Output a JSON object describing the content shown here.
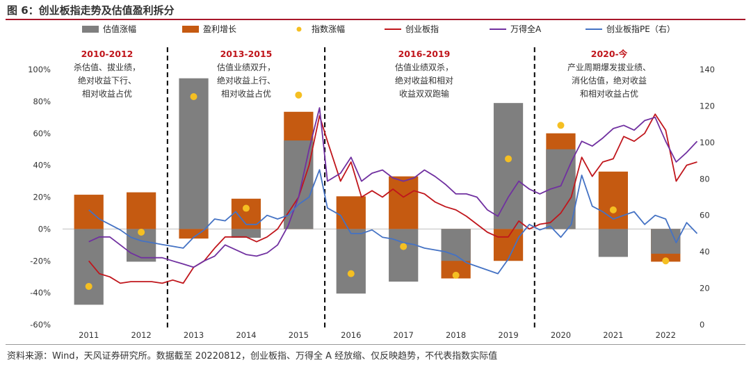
{
  "title": "图 6：创业板指走势及估值盈利拆分",
  "source": "资料来源：Wind，天风证券研究所。数据截至 20220812，创业板指、万得全 A 经放缩、仅反映趋势，不代表指数实际值",
  "colors": {
    "valuation": "#7f7f7f",
    "earnings": "#c55a11",
    "index_return": "#f5bf22",
    "chinext": "#c0161c",
    "wind_a": "#7030a0",
    "pe": "#4472c4",
    "annotation": "#c0161c"
  },
  "legend": [
    {
      "key": "valuation",
      "label": "估值涨幅",
      "mark": "bar"
    },
    {
      "key": "earnings",
      "label": "盈利增长",
      "mark": "bar"
    },
    {
      "key": "index_return",
      "label": "指数涨幅",
      "mark": "dot"
    },
    {
      "key": "chinext",
      "label": "创业板指",
      "mark": "line"
    },
    {
      "key": "wind_a",
      "label": "万得全A",
      "mark": "line"
    },
    {
      "key": "pe",
      "label": "创业板指PE（右）",
      "mark": "line"
    }
  ],
  "annotations": [
    {
      "heading": "2010-2012",
      "lines": [
        "杀估值、拔业绩，",
        "绝对收益下行、",
        "相对收益占优"
      ]
    },
    {
      "heading": "2013-2015",
      "lines": [
        "估值业绩双升，",
        "绝对收益上行、",
        "相对收益占优"
      ]
    },
    {
      "heading": "2016-2019",
      "lines": [
        "估值业绩双杀，",
        "绝对收益和相对",
        "收益双双跑输"
      ]
    },
    {
      "heading": "2020-今",
      "lines": [
        "产业周期爆发拔业绩、",
        "消化估值，绝对收益",
        "和相对收益占优"
      ]
    }
  ],
  "chart_data": {
    "type": "bar",
    "categories": [
      "2011",
      "2012",
      "2013",
      "2014",
      "2015",
      "2016",
      "2017",
      "2018",
      "2019",
      "2020",
      "2021",
      "2022"
    ],
    "y_left": {
      "min": -60,
      "max": 100,
      "unit": "%",
      "ticks": [
        "-60%",
        "-40%",
        "-20%",
        "0%",
        "20%",
        "40%",
        "60%",
        "80%",
        "100%"
      ]
    },
    "y_right": {
      "min": 0,
      "max": 140,
      "ticks": [
        "0",
        "20",
        "40",
        "60",
        "80",
        "100",
        "120",
        "140"
      ]
    },
    "phase_dividers_after": [
      "2012",
      "2015",
      "2019"
    ],
    "bar_series": [
      {
        "name": "估值涨幅",
        "values": [
          -47.5,
          -20.5,
          94.5,
          -5.5,
          55.5,
          -40.5,
          -33,
          -20,
          79,
          50,
          -17.5,
          -15.5
        ]
      },
      {
        "name": "盈利增长",
        "values": [
          21.5,
          23,
          -6,
          19,
          73.5,
          20.5,
          33,
          -31,
          -20,
          60,
          36,
          -20.5
        ]
      }
    ],
    "dot_series": {
      "name": "指数涨幅",
      "values": [
        -36,
        -2,
        83,
        13,
        84,
        -28,
        -11,
        -29,
        44,
        65,
        12,
        -20
      ]
    },
    "line_series": [
      {
        "name": "创业板指",
        "axis": "left",
        "x": [
          2011.0,
          2011.2,
          2011.4,
          2011.6,
          2011.8,
          2012.0,
          2012.2,
          2012.4,
          2012.6,
          2012.8,
          2013.0,
          2013.2,
          2013.4,
          2013.6,
          2013.8,
          2014.0,
          2014.2,
          2014.4,
          2014.6,
          2014.8,
          2015.0,
          2015.2,
          2015.4,
          2015.55,
          2015.8,
          2016.0,
          2016.2,
          2016.4,
          2016.6,
          2016.8,
          2017.0,
          2017.2,
          2017.4,
          2017.6,
          2017.8,
          2018.0,
          2018.2,
          2018.4,
          2018.6,
          2018.8,
          2019.0,
          2019.2,
          2019.4,
          2019.6,
          2019.8,
          2020.0,
          2020.2,
          2020.4,
          2020.6,
          2020.8,
          2021.0,
          2021.2,
          2021.4,
          2021.6,
          2021.8,
          2022.0,
          2022.2,
          2022.4,
          2022.6
        ],
        "y": [
          -20,
          -28,
          -30,
          -34,
          -33,
          -33,
          -33,
          -34,
          -32,
          -34,
          -24,
          -20,
          -12,
          -5,
          -5,
          -5,
          -8,
          -5,
          0,
          10,
          20,
          40,
          71,
          55,
          30,
          42,
          20,
          24,
          20,
          25,
          20,
          24,
          22,
          17,
          14,
          12,
          8,
          3,
          -2,
          -5,
          -5,
          5,
          0,
          3,
          4,
          10,
          20,
          45,
          33,
          42,
          44,
          58,
          55,
          60,
          72,
          62,
          30,
          40,
          42
        ]
      },
      {
        "name": "万得全A",
        "axis": "left",
        "x": [
          2011.0,
          2011.2,
          2011.4,
          2011.6,
          2011.8,
          2012.0,
          2012.2,
          2012.4,
          2012.6,
          2012.8,
          2013.0,
          2013.2,
          2013.4,
          2013.6,
          2013.8,
          2014.0,
          2014.2,
          2014.4,
          2014.6,
          2014.8,
          2015.0,
          2015.2,
          2015.4,
          2015.55,
          2015.8,
          2016.0,
          2016.2,
          2016.4,
          2016.6,
          2016.8,
          2017.0,
          2017.2,
          2017.4,
          2017.6,
          2017.8,
          2018.0,
          2018.2,
          2018.4,
          2018.6,
          2018.8,
          2019.0,
          2019.2,
          2019.4,
          2019.6,
          2019.8,
          2020.0,
          2020.2,
          2020.4,
          2020.6,
          2020.8,
          2021.0,
          2021.2,
          2021.4,
          2021.6,
          2021.8,
          2022.0,
          2022.2,
          2022.4,
          2022.6
        ],
        "y": [
          -8,
          -5,
          -5,
          -10,
          -15,
          -18,
          -18,
          -18,
          -20,
          -22,
          -24,
          -20,
          -17,
          -10,
          -13,
          -16,
          -17,
          -15,
          -10,
          2,
          20,
          50,
          76,
          30,
          35,
          45,
          30,
          35,
          37,
          32,
          30,
          32,
          37,
          33,
          28,
          22,
          22,
          20,
          12,
          8,
          20,
          30,
          25,
          22,
          25,
          27,
          42,
          55,
          52,
          57,
          63,
          65,
          62,
          68,
          70,
          55,
          42,
          48,
          55
        ]
      },
      {
        "name": "创业板指PE（右）",
        "axis": "right",
        "x": [
          2011.0,
          2011.2,
          2011.4,
          2011.6,
          2011.8,
          2012.0,
          2012.2,
          2012.4,
          2012.6,
          2012.8,
          2013.0,
          2013.2,
          2013.4,
          2013.6,
          2013.8,
          2014.0,
          2014.2,
          2014.4,
          2014.6,
          2014.8,
          2015.0,
          2015.2,
          2015.4,
          2015.55,
          2015.8,
          2016.0,
          2016.2,
          2016.4,
          2016.6,
          2016.8,
          2017.0,
          2017.2,
          2017.4,
          2017.6,
          2017.8,
          2018.0,
          2018.2,
          2018.4,
          2018.6,
          2018.8,
          2019.0,
          2019.2,
          2019.4,
          2019.6,
          2019.8,
          2020.0,
          2020.2,
          2020.4,
          2020.6,
          2020.8,
          2021.0,
          2021.2,
          2021.4,
          2021.6,
          2021.8,
          2022.0,
          2022.2,
          2022.4,
          2022.6
        ],
        "y": [
          63,
          58,
          55,
          52,
          48,
          46,
          45,
          44,
          43,
          42,
          48,
          52,
          58,
          57,
          62,
          55,
          55,
          60,
          58,
          60,
          66,
          70,
          85,
          64,
          60,
          50,
          50,
          52,
          48,
          47,
          45,
          44,
          42,
          41,
          40,
          38,
          34,
          32,
          30,
          28,
          36,
          48,
          55,
          52,
          54,
          48,
          55,
          82,
          65,
          62,
          58,
          60,
          62,
          55,
          60,
          58,
          45,
          56,
          50
        ]
      }
    ]
  }
}
